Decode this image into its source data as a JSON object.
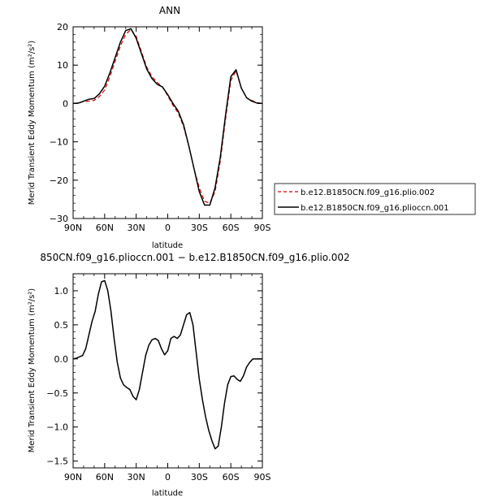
{
  "chart_data": [
    {
      "type": "line",
      "title": "ANN",
      "xlabel": "latitude",
      "ylabel": "Merid Transient Eddy Momentum (m²/s²)",
      "x_ticks": [
        "90N",
        "60N",
        "30N",
        "0",
        "30S",
        "60S",
        "90S"
      ],
      "x_tick_values": [
        90,
        60,
        30,
        0,
        -30,
        -60,
        -90
      ],
      "xlim": [
        90,
        -90
      ],
      "ylim": [
        -30,
        20
      ],
      "y_ticks": [
        "20",
        "10",
        "0",
        "−10",
        "−20",
        "−30"
      ],
      "y_tick_values": [
        20,
        10,
        0,
        -10,
        -20,
        -30
      ],
      "legend_position": "right",
      "series": [
        {
          "name": "b.e12.B1850CN.f09_g16.plio.002",
          "color": "#d40000",
          "style": "dashed",
          "x": [
            90,
            85,
            80,
            75,
            70,
            65,
            60,
            55,
            50,
            45,
            40,
            35,
            30,
            25,
            20,
            15,
            10,
            5,
            0,
            -5,
            -10,
            -15,
            -20,
            -25,
            -30,
            -35,
            -40,
            -45,
            -50,
            -55,
            -60,
            -65,
            -70,
            -75,
            -80,
            -85,
            -90
          ],
          "y": [
            0,
            0.1,
            0.5,
            0.6,
            0.8,
            1.8,
            3.5,
            7,
            11,
            15,
            18,
            19.3,
            17.5,
            13.5,
            9.5,
            7,
            5.5,
            4.3,
            2,
            -0.5,
            -2.5,
            -6,
            -11,
            -17,
            -22,
            -25.5,
            -26,
            -23,
            -15,
            -4,
            6,
            8.5,
            4,
            1.5,
            0.8,
            0.2,
            0
          ]
        },
        {
          "name": "b.e12.B1850CN.f09_g16.plioccn.001",
          "color": "#000000",
          "style": "solid",
          "x": [
            90,
            85,
            80,
            75,
            70,
            65,
            60,
            55,
            50,
            45,
            40,
            35,
            30,
            25,
            20,
            15,
            10,
            5,
            0,
            -5,
            -10,
            -15,
            -20,
            -25,
            -30,
            -35,
            -40,
            -45,
            -50,
            -55,
            -60,
            -65,
            -70,
            -75,
            -80,
            -85,
            -90
          ],
          "y": [
            0,
            0.1,
            0.6,
            1.1,
            1.3,
            2.5,
            4.5,
            8,
            12,
            16,
            19,
            19.5,
            17,
            13,
            9,
            6.5,
            5,
            4.3,
            2.3,
            0,
            -2,
            -5.5,
            -11,
            -17,
            -23,
            -26.5,
            -26.5,
            -22,
            -14,
            -3,
            7,
            8.8,
            4,
            1.5,
            0.6,
            0.1,
            0
          ]
        }
      ]
    },
    {
      "type": "line",
      "title": "850CN.f09_g16.plioccn.001 − b.e12.B1850CN.f09_g16.plio.002",
      "xlabel": "latitude",
      "ylabel": "Merid Transient Eddy Momentum (m²/s²)",
      "x_ticks": [
        "90N",
        "60N",
        "30N",
        "0",
        "30S",
        "60S",
        "90S"
      ],
      "x_tick_values": [
        90,
        60,
        30,
        0,
        -30,
        -60,
        -90
      ],
      "xlim": [
        90,
        -90
      ],
      "ylim": [
        -1.6,
        1.25
      ],
      "y_ticks": [
        "1.0",
        "0.5",
        "0.0",
        "−0.5",
        "−1.0",
        "−1.5"
      ],
      "y_tick_values": [
        1.0,
        0.5,
        0.0,
        -0.5,
        -1.0,
        -1.5
      ],
      "series": [
        {
          "color": "#000000",
          "style": "solid",
          "x": [
            90,
            87,
            84,
            81,
            78,
            75,
            72,
            69,
            66,
            63,
            60,
            57,
            54,
            51,
            48,
            45,
            42,
            39,
            36,
            33,
            30,
            27,
            24,
            21,
            18,
            15,
            12,
            9,
            6,
            3,
            0,
            -3,
            -6,
            -9,
            -12,
            -15,
            -18,
            -21,
            -24,
            -27,
            -30,
            -33,
            -36,
            -39,
            -42,
            -45,
            -48,
            -51,
            -54,
            -57,
            -60,
            -63,
            -66,
            -69,
            -72,
            -75,
            -78,
            -81,
            -84,
            -87,
            -90
          ],
          "y": [
            0,
            0.01,
            0.03,
            0.05,
            0.15,
            0.35,
            0.55,
            0.7,
            0.95,
            1.13,
            1.15,
            1.0,
            0.7,
            0.3,
            -0.05,
            -0.28,
            -0.38,
            -0.42,
            -0.45,
            -0.55,
            -0.6,
            -0.45,
            -0.2,
            0.05,
            0.2,
            0.28,
            0.3,
            0.27,
            0.15,
            0.06,
            0.12,
            0.3,
            0.33,
            0.3,
            0.35,
            0.5,
            0.65,
            0.68,
            0.5,
            0.1,
            -0.3,
            -0.6,
            -0.85,
            -1.05,
            -1.2,
            -1.32,
            -1.28,
            -1.0,
            -0.65,
            -0.38,
            -0.26,
            -0.25,
            -0.3,
            -0.33,
            -0.25,
            -0.12,
            -0.05,
            0.0,
            0.0,
            0.0,
            0.0
          ]
        }
      ]
    }
  ]
}
